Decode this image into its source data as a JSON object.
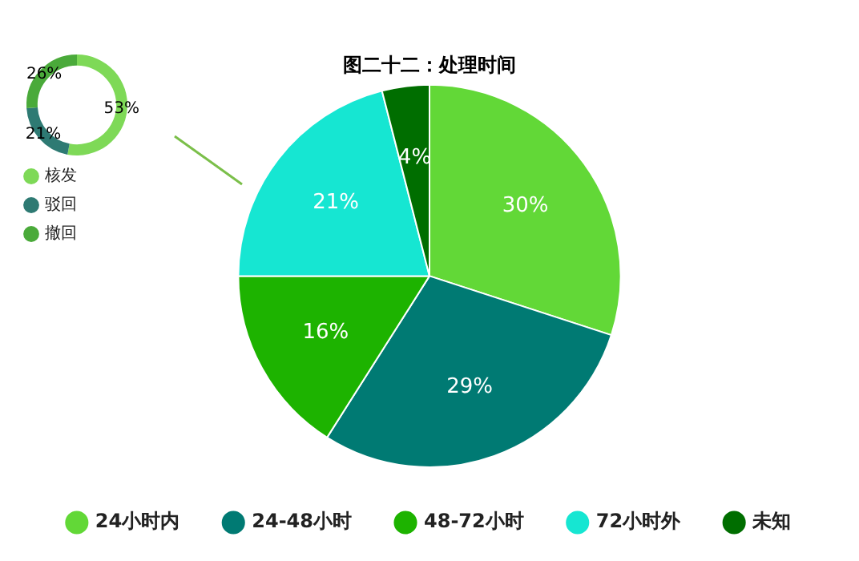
{
  "chart_data": [
    {
      "type": "donut",
      "categories": [
        "核发",
        "驳回",
        "撤回"
      ],
      "values": [
        53,
        21,
        26
      ],
      "colors": [
        "#7ed957",
        "#2e7a73",
        "#4aaa3a"
      ],
      "value_labels": [
        "53%",
        "21%",
        "26%"
      ],
      "legend": "bottom left"
    },
    {
      "type": "pie",
      "title": "图二十二：处理时间",
      "categories": [
        "24小时内",
        "24-48小时",
        "48-72小时",
        "72小时外",
        "未知"
      ],
      "values": [
        30,
        29,
        16,
        21,
        4
      ],
      "colors": [
        "#62d837",
        "#007a73",
        "#1db300",
        "#16e6d2",
        "#006e00"
      ],
      "value_labels": [
        "30%",
        "29%",
        "16%",
        "21%",
        "4%"
      ],
      "legend": "bottom"
    }
  ]
}
